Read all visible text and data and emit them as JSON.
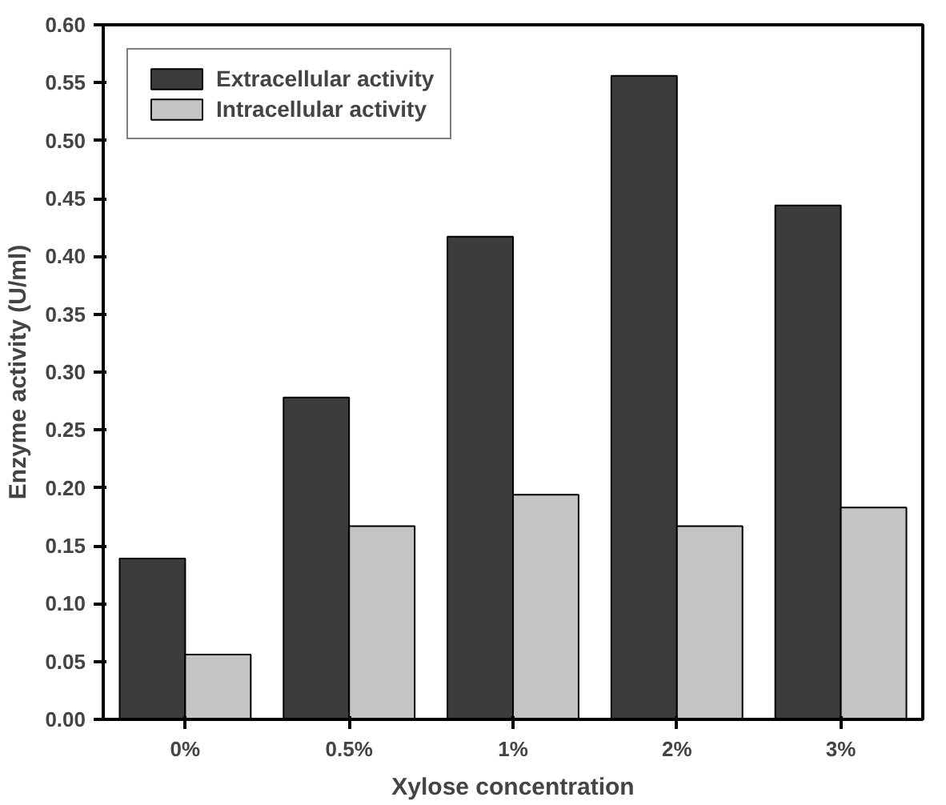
{
  "chart_data": {
    "type": "bar",
    "xlabel": "Xylose concentration",
    "ylabel": "Enzyme activity (U/ml)",
    "categories": [
      "0%",
      "0.5%",
      "1%",
      "2%",
      "3%"
    ],
    "series": [
      {
        "name": "Extracellular activity",
        "color": "#3c3c3c",
        "values": [
          0.139,
          0.278,
          0.417,
          0.556,
          0.444
        ]
      },
      {
        "name": "Intracellular activity",
        "color": "#c4c4c4",
        "values": [
          0.056,
          0.167,
          0.194,
          0.167,
          0.183
        ]
      }
    ],
    "ylim": [
      0,
      0.6
    ],
    "yticks": [
      {
        "value": 0,
        "label": "0.00"
      },
      {
        "value": 0.05,
        "label": "0.05"
      },
      {
        "value": 0.1,
        "label": "0.10"
      },
      {
        "value": 0.15,
        "label": "0.15"
      },
      {
        "value": 0.2,
        "label": "0.20"
      },
      {
        "value": 0.25,
        "label": "0.25"
      },
      {
        "value": 0.3,
        "label": "0.30"
      },
      {
        "value": 0.35,
        "label": "0.35"
      },
      {
        "value": 0.4,
        "label": "0.40"
      },
      {
        "value": 0.45,
        "label": "0.45"
      },
      {
        "value": 0.5,
        "label": "0.50"
      },
      {
        "value": 0.55,
        "label": "0.55"
      },
      {
        "value": 0.6,
        "label": "0.60"
      }
    ],
    "grid": false,
    "legend": "top left"
  }
}
